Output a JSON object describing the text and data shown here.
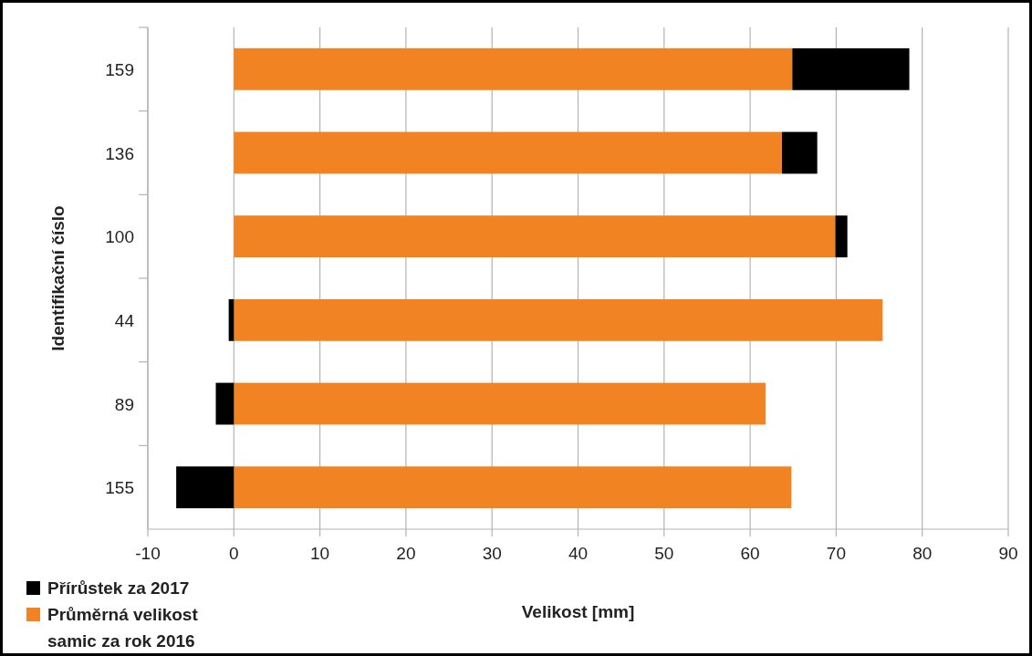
{
  "chart_data": {
    "type": "bar",
    "orientation": "horizontal",
    "stacked": true,
    "xlabel": "Velikost [mm]",
    "ylabel": "Identifikační číslo",
    "categories": [
      "159",
      "136",
      "100",
      "44",
      "89",
      "155"
    ],
    "series": [
      {
        "name": "Průměrná velikost samic za rok 2016",
        "color": "#f28322",
        "values": [
          64.9,
          63.7,
          69.9,
          75.4,
          61.8,
          64.8
        ]
      },
      {
        "name": "Přírůstek za 2017",
        "color": "#000000",
        "values": [
          13.6,
          4.1,
          1.4,
          -0.6,
          -2.1,
          -6.7
        ]
      }
    ],
    "xlim": [
      -10,
      90
    ],
    "xticks": [
      -10,
      0,
      10,
      20,
      30,
      40,
      50,
      60,
      70,
      80,
      90
    ],
    "grid": "x",
    "legend": "bottom left"
  }
}
